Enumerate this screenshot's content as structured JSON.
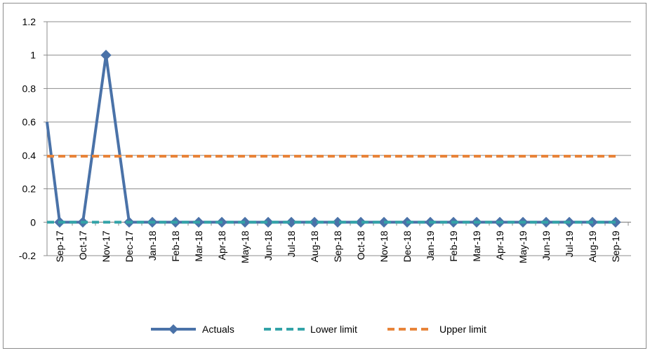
{
  "chart_data": {
    "type": "line",
    "categories": [
      "Sep-17",
      "Oct-17",
      "Nov-17",
      "Dec-17",
      "Jan-18",
      "Feb-18",
      "Mar-18",
      "Apr-18",
      "May-18",
      "Jun-18",
      "Jul-18",
      "Aug-18",
      "Sep-18",
      "Oct-18",
      "Nov-18",
      "Dec-18",
      "Jan-19",
      "Feb-19",
      "Mar-19",
      "Apr-19",
      "May-19",
      "Jun-19",
      "Jul-19",
      "Aug-19",
      "Sep-19"
    ],
    "ylim": [
      -0.2,
      1.2
    ],
    "yticks": [
      "1.2",
      "1",
      "0.8",
      "0.6",
      "0.4",
      "0.2",
      "0",
      "-0.2"
    ],
    "yticks_values": [
      1.2,
      1,
      0.8,
      0.6,
      0.4,
      0.2,
      0,
      -0.2
    ],
    "grid": true,
    "legend_position": "bottom",
    "start_value": 0.6,
    "series": [
      {
        "name": "Actuals",
        "color": "#4a72a8",
        "style": "solid-diamond",
        "values": [
          0,
          0,
          1,
          0,
          0,
          0,
          0,
          0,
          0,
          0,
          0,
          0,
          0,
          0,
          0,
          0,
          0,
          0,
          0,
          0,
          0,
          0,
          0,
          0,
          0
        ]
      },
      {
        "name": "Lower limit",
        "color": "#33a3a8",
        "style": "dashed",
        "values": [
          0,
          0,
          0,
          0,
          0,
          0,
          0,
          0,
          0,
          0,
          0,
          0,
          0,
          0,
          0,
          0,
          0,
          0,
          0,
          0,
          0,
          0,
          0,
          0,
          0
        ]
      },
      {
        "name": "Upper limit",
        "color": "#e8843a",
        "style": "dashed",
        "values": [
          0.395,
          0.395,
          0.395,
          0.395,
          0.395,
          0.395,
          0.395,
          0.395,
          0.395,
          0.395,
          0.395,
          0.395,
          0.395,
          0.395,
          0.395,
          0.395,
          0.395,
          0.395,
          0.395,
          0.395,
          0.395,
          0.395,
          0.395,
          0.395,
          0.395
        ]
      }
    ]
  }
}
